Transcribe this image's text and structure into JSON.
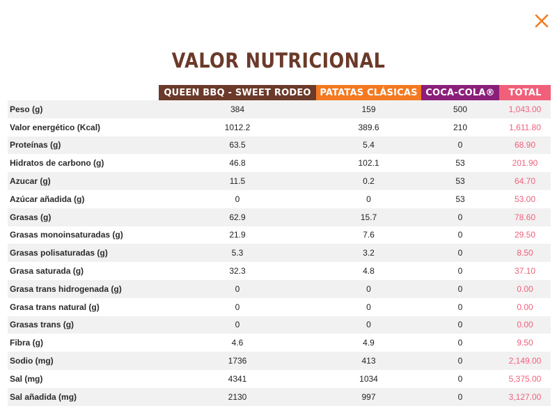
{
  "title": "VALOR NUTRICIONAL",
  "close_icon": "close-icon",
  "colors": {
    "title": "#6b3a2a",
    "burger": "#6b3a2a",
    "fries": "#f47920",
    "cola": "#8a1f7a",
    "total": "#f0607a",
    "close": "#f47920"
  },
  "headers": {
    "burger": "QUEEN BBQ - SWEET RODEO",
    "fries": "PATATAS CLÁSICAS",
    "cola": "COCA-COLA®",
    "total": "TOTAL"
  },
  "rows": [
    {
      "label": "Peso (g)",
      "burger": "384",
      "fries": "159",
      "cola": "500",
      "total": "1,043.00"
    },
    {
      "label": "Valor energético (Kcal)",
      "burger": "1012.2",
      "fries": "389.6",
      "cola": "210",
      "total": "1,611.80"
    },
    {
      "label": "Proteínas (g)",
      "burger": "63.5",
      "fries": "5.4",
      "cola": "0",
      "total": "68.90"
    },
    {
      "label": "Hidratos de carbono (g)",
      "burger": "46.8",
      "fries": "102.1",
      "cola": "53",
      "total": "201.90"
    },
    {
      "label": "Azucar (g)",
      "burger": "11.5",
      "fries": "0.2",
      "cola": "53",
      "total": "64.70"
    },
    {
      "label": "Azúcar añadida (g)",
      "burger": "0",
      "fries": "0",
      "cola": "53",
      "total": "53.00"
    },
    {
      "label": "Grasas (g)",
      "burger": "62.9",
      "fries": "15.7",
      "cola": "0",
      "total": "78.60"
    },
    {
      "label": "Grasas monoinsaturadas (g)",
      "burger": "21.9",
      "fries": "7.6",
      "cola": "0",
      "total": "29.50"
    },
    {
      "label": "Grasas polisaturadas (g)",
      "burger": "5.3",
      "fries": "3.2",
      "cola": "0",
      "total": "8.50"
    },
    {
      "label": "Grasa saturada (g)",
      "burger": "32.3",
      "fries": "4.8",
      "cola": "0",
      "total": "37.10"
    },
    {
      "label": "Grasa trans hidrogenada (g)",
      "burger": "0",
      "fries": "0",
      "cola": "0",
      "total": "0.00"
    },
    {
      "label": "Grasa trans natural (g)",
      "burger": "0",
      "fries": "0",
      "cola": "0",
      "total": "0.00"
    },
    {
      "label": "Grasas trans (g)",
      "burger": "0",
      "fries": "0",
      "cola": "0",
      "total": "0.00"
    },
    {
      "label": "Fibra (g)",
      "burger": "4.6",
      "fries": "4.9",
      "cola": "0",
      "total": "9.50"
    },
    {
      "label": "Sodio (mg)",
      "burger": "1736",
      "fries": "413",
      "cola": "0",
      "total": "2,149.00"
    },
    {
      "label": "Sal (mg)",
      "burger": "4341",
      "fries": "1034",
      "cola": "0",
      "total": "5,375.00"
    },
    {
      "label": "Sal añadida (mg)",
      "burger": "2130",
      "fries": "997",
      "cola": "0",
      "total": "3,127.00"
    }
  ]
}
